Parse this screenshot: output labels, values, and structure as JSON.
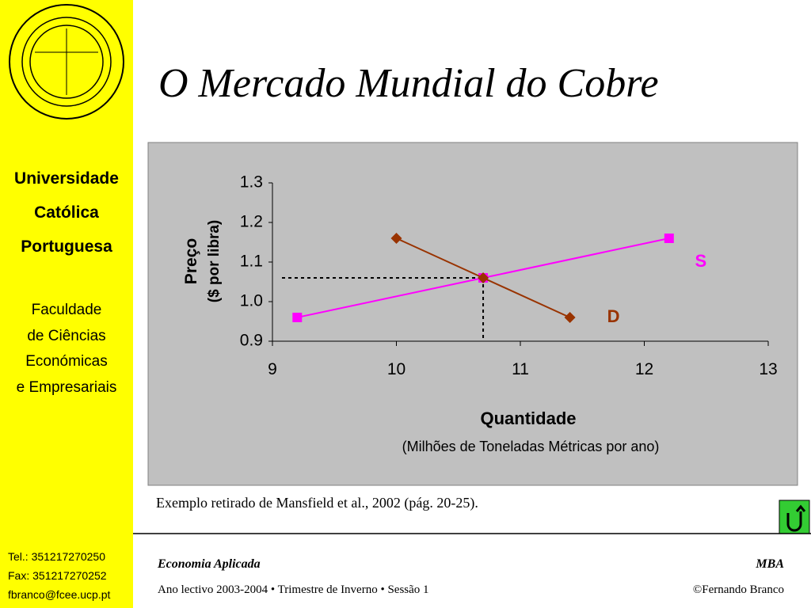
{
  "title": "O Mercado Mundial do Cobre",
  "sidebar": {
    "institution": [
      "Universidade",
      "Católica",
      "Portuguesa"
    ],
    "faculty": [
      "Faculdade",
      "de Ciências",
      "Económicas",
      "e Empresariais"
    ],
    "contacts": [
      "Tel.: 351217270250",
      "Fax: 351217270252",
      "fbranco@fcee.ucp.pt"
    ]
  },
  "chart_data": {
    "type": "line",
    "xlabel": "Quantidade",
    "xlabel_note": "(Milhões de Toneladas Métricas por ano)",
    "ylabel": "Preço",
    "ylabel_note": "($ por libra)",
    "xlim": [
      9,
      13
    ],
    "ylim": [
      0.9,
      1.3
    ],
    "xticks": [
      9,
      10,
      11,
      12,
      13
    ],
    "yticks": [
      0.9,
      {
        "value": 1,
        "label": "1.0"
      },
      1.1,
      1.2,
      1.3
    ],
    "series": [
      {
        "name": "S",
        "color": "#ff00ff",
        "marker": "square",
        "x": [
          9.2,
          10.7,
          12.2
        ],
        "values": [
          0.96,
          1.06,
          1.16
        ]
      },
      {
        "name": "D",
        "color": "#993300",
        "marker": "diamond",
        "x": [
          10.0,
          10.7,
          11.4
        ],
        "values": [
          1.16,
          1.06,
          0.96
        ]
      }
    ]
  },
  "source": "Exemplo retirado de Mansfield et al., 2002 (pág. 20-25).",
  "footer": {
    "course": "Economia Aplicada",
    "program": "MBA",
    "session": "Ano lectivo 2003-2004 • Trimestre de Inverno • Sessão 1",
    "author": "©Fernando Branco"
  }
}
